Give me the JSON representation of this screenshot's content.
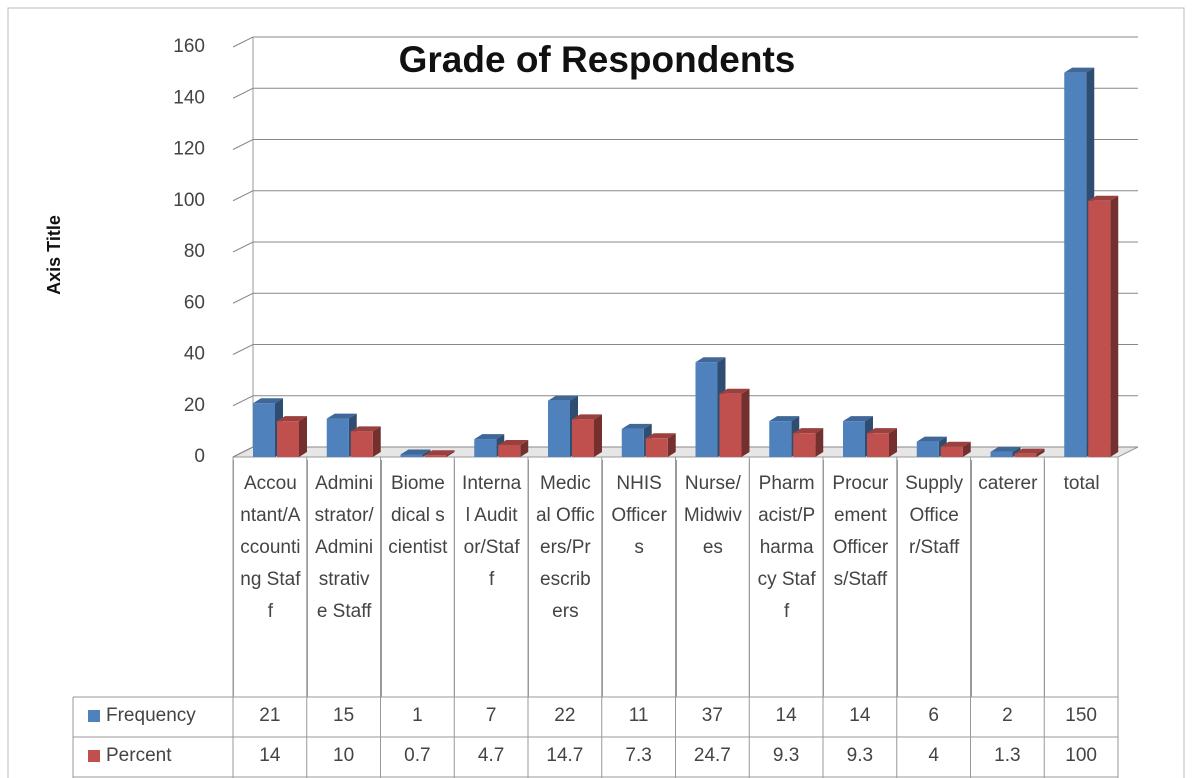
{
  "chart_data": {
    "type": "bar",
    "title": "Grade of Respondents",
    "y_axis_label": "Axis Title",
    "categories": [
      "Accountant/Accounting Staff",
      "Administrator/Administrative Staff",
      "Biomedical scientist",
      "Internal Auditor/Staff",
      "Medical Officers/Prescribers",
      "NHIS Officers",
      "Nurse/Midwives",
      "Pharmacist/Pharmacy Staff",
      "Procurement Officers/Staff",
      "Supply Officer/Staff",
      "caterer",
      "total"
    ],
    "series": [
      {
        "name": "Frequency",
        "color": "#4f81bd",
        "values": [
          21,
          15,
          1,
          7,
          22,
          11,
          37,
          14,
          14,
          6,
          2,
          150
        ]
      },
      {
        "name": "Percent",
        "color": "#c0504d",
        "values": [
          14,
          10,
          0.7,
          4.7,
          14.7,
          7.3,
          24.7,
          9.3,
          9.3,
          4,
          1.3,
          100
        ]
      }
    ],
    "ylim": [
      0,
      160
    ],
    "yticks": [
      0,
      20,
      40,
      60,
      80,
      100,
      120,
      140,
      160
    ],
    "grid": true,
    "data_table": true
  }
}
